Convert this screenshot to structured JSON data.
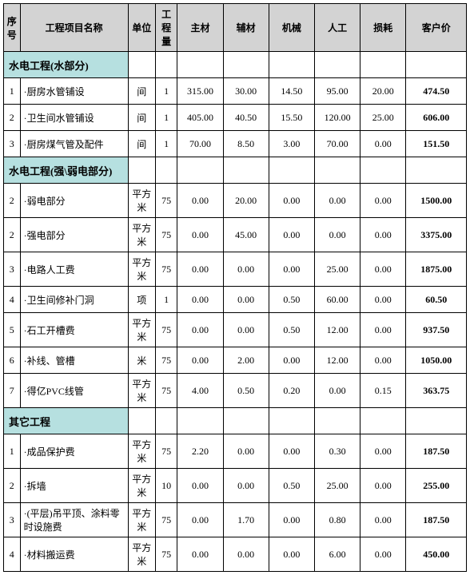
{
  "columns": [
    "序号",
    "工程项目名称",
    "单位",
    "工程量",
    "主材",
    "辅材",
    "机械",
    "人工",
    "损耗",
    "客户价"
  ],
  "sections": [
    {
      "title": "水电工程(水部分)",
      "rows": [
        {
          "seq": "1",
          "name": "·厨房水管铺设",
          "unit": "间",
          "qty": "1",
          "main": "315.00",
          "aux": "30.00",
          "mach": "14.50",
          "labor": "95.00",
          "loss": "20.00",
          "price": "474.50"
        },
        {
          "seq": "2",
          "name": "·卫生间水管铺设",
          "unit": "间",
          "qty": "1",
          "main": "405.00",
          "aux": "40.50",
          "mach": "15.50",
          "labor": "120.00",
          "loss": "25.00",
          "price": "606.00"
        },
        {
          "seq": "3",
          "name": "·厨房煤气管及配件",
          "unit": "间",
          "qty": "1",
          "main": "70.00",
          "aux": "8.50",
          "mach": "3.00",
          "labor": "70.00",
          "loss": "0.00",
          "price": "151.50"
        }
      ]
    },
    {
      "title": "水电工程(强\\弱电部分)",
      "rows": [
        {
          "seq": "2",
          "name": "·弱电部分",
          "unit": "平方米",
          "qty": "75",
          "main": "0.00",
          "aux": "20.00",
          "mach": "0.00",
          "labor": "0.00",
          "loss": "0.00",
          "price": "1500.00"
        },
        {
          "seq": "2",
          "name": "·强电部分",
          "unit": "平方米",
          "qty": "75",
          "main": "0.00",
          "aux": "45.00",
          "mach": "0.00",
          "labor": "0.00",
          "loss": "0.00",
          "price": "3375.00"
        },
        {
          "seq": "3",
          "name": "·电路人工费",
          "unit": "平方米",
          "qty": "75",
          "main": "0.00",
          "aux": "0.00",
          "mach": "0.00",
          "labor": "25.00",
          "loss": "0.00",
          "price": "1875.00"
        },
        {
          "seq": "4",
          "name": "·卫生间修补门洞",
          "unit": "项",
          "qty": "1",
          "main": "0.00",
          "aux": "0.00",
          "mach": "0.50",
          "labor": "60.00",
          "loss": "0.00",
          "price": "60.50"
        },
        {
          "seq": "5",
          "name": "·石工开槽费",
          "unit": "平方米",
          "qty": "75",
          "main": "0.00",
          "aux": "0.00",
          "mach": "0.50",
          "labor": "12.00",
          "loss": "0.00",
          "price": "937.50"
        },
        {
          "seq": "6",
          "name": "·补线、管槽",
          "unit": "米",
          "qty": "75",
          "main": "0.00",
          "aux": "2.00",
          "mach": "0.00",
          "labor": "12.00",
          "loss": "0.00",
          "price": "1050.00"
        },
        {
          "seq": "7",
          "name": "·得亿PVC线管",
          "unit": "平方米",
          "qty": "75",
          "main": "4.00",
          "aux": "0.50",
          "mach": "0.20",
          "labor": "0.00",
          "loss": "0.15",
          "price": "363.75"
        }
      ]
    },
    {
      "title": "其它工程",
      "rows": [
        {
          "seq": "1",
          "name": "·成品保护费",
          "unit": "平方米",
          "qty": "75",
          "main": "2.20",
          "aux": "0.00",
          "mach": "0.00",
          "labor": "0.30",
          "loss": "0.00",
          "price": "187.50"
        },
        {
          "seq": "2",
          "name": "·拆墙",
          "unit": "平方米",
          "qty": "10",
          "main": "0.00",
          "aux": "0.00",
          "mach": "0.50",
          "labor": "25.00",
          "loss": "0.00",
          "price": "255.00"
        },
        {
          "seq": "3",
          "name": "·(平层)吊平顶、涂料零时设施费",
          "unit": "平方米",
          "qty": "75",
          "main": "0.00",
          "aux": "1.70",
          "mach": "0.00",
          "labor": "0.80",
          "loss": "0.00",
          "price": "187.50"
        },
        {
          "seq": "4",
          "name": "·材料搬运费",
          "unit": "平方米",
          "qty": "75",
          "main": "0.00",
          "aux": "0.00",
          "mach": "0.00",
          "labor": "6.00",
          "loss": "0.00",
          "price": "450.00"
        }
      ]
    }
  ]
}
